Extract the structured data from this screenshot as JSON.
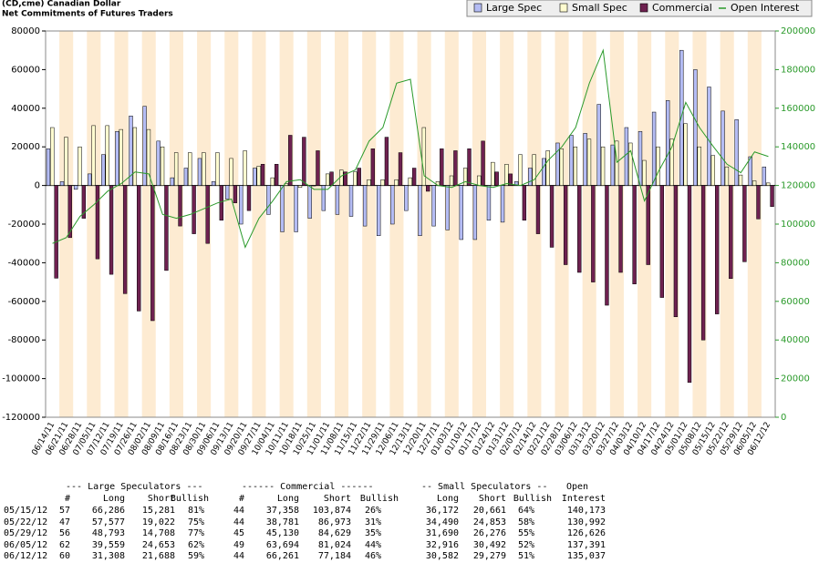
{
  "chart_data": {
    "type": "bar",
    "title": "(CD,cme) Canadian Dollar",
    "subtitle": "Net Commitments of Futures Traders",
    "categories": [
      "06/14/11",
      "06/21/11",
      "06/28/11",
      "07/05/11",
      "07/12/11",
      "07/19/11",
      "07/26/11",
      "08/02/11",
      "08/09/11",
      "08/16/11",
      "08/23/11",
      "08/30/11",
      "09/06/11",
      "09/13/11",
      "09/20/11",
      "09/27/11",
      "10/04/11",
      "10/11/11",
      "10/18/11",
      "10/25/11",
      "11/01/11",
      "11/08/11",
      "11/15/11",
      "11/22/11",
      "11/29/11",
      "12/06/11",
      "12/13/11",
      "12/20/11",
      "12/27/11",
      "01/03/12",
      "01/10/12",
      "01/17/12",
      "01/24/12",
      "01/31/12",
      "02/07/12",
      "02/14/12",
      "02/21/12",
      "02/28/12",
      "03/06/12",
      "03/13/12",
      "03/20/12",
      "03/27/12",
      "04/03/12",
      "04/10/12",
      "04/17/12",
      "04/24/12",
      "05/01/12",
      "05/08/12",
      "05/15/12",
      "05/22/12",
      "05/29/12",
      "06/05/12",
      "06/12/12"
    ],
    "series": [
      {
        "name": "Large Spec",
        "color": "#b4bcf4",
        "values": [
          19000,
          2000,
          -2000,
          6000,
          16000,
          28000,
          36000,
          41000,
          23000,
          4000,
          9000,
          14000,
          2000,
          -7000,
          -20000,
          9000,
          -15000,
          -24000,
          -24000,
          -17000,
          -13000,
          -15000,
          -16000,
          -21000,
          -26000,
          -20000,
          -13000,
          -26000,
          -21000,
          -23000,
          -28000,
          -28000,
          -18000,
          -19000,
          2000,
          9000,
          14000,
          22000,
          26000,
          27000,
          42000,
          21000,
          30000,
          28000,
          38000,
          44000,
          70000,
          60000,
          51005,
          38555,
          34085,
          14906,
          9620
        ]
      },
      {
        "name": "Small Spec",
        "color": "#fffcd0",
        "values": [
          30000,
          25000,
          20000,
          31000,
          31000,
          29000,
          30000,
          29000,
          20000,
          17000,
          17000,
          17000,
          17000,
          14000,
          18000,
          10000,
          4000,
          1000,
          -1000,
          0,
          6000,
          8000,
          7000,
          3000,
          3000,
          3000,
          4000,
          30000,
          2000,
          5000,
          9000,
          5000,
          12000,
          11000,
          16000,
          16000,
          18000,
          19000,
          20000,
          24000,
          20000,
          23000,
          22000,
          13000,
          20000,
          24000,
          32000,
          20000,
          15511,
          9637,
          5414,
          2424,
          1303
        ]
      },
      {
        "name": "Commercial",
        "color": "#6e2150",
        "values": [
          -48000,
          -27000,
          -17000,
          -38000,
          -46000,
          -56000,
          -65000,
          -70000,
          -44000,
          -21000,
          -25000,
          -30000,
          -18000,
          -9000,
          -13000,
          11000,
          11000,
          26000,
          25000,
          18000,
          7000,
          7000,
          9000,
          19000,
          25000,
          17000,
          9000,
          -3000,
          19000,
          18000,
          19000,
          23000,
          7000,
          6000,
          -18000,
          -25000,
          -32000,
          -41000,
          -45000,
          -50000,
          -62000,
          -45000,
          -51000,
          -41000,
          -58000,
          -68000,
          -102000,
          -80000,
          -66516,
          -48192,
          -39499,
          -17330,
          -10923
        ]
      },
      {
        "name": "Open Interest",
        "color": "#2a9a2a",
        "type": "line",
        "axis": "y2",
        "values": [
          90000,
          93000,
          104000,
          110000,
          117000,
          121000,
          127000,
          126000,
          105000,
          103000,
          105000,
          108000,
          111000,
          113000,
          88000,
          103000,
          112000,
          122000,
          123000,
          118000,
          118000,
          125000,
          128000,
          143000,
          150000,
          173000,
          175000,
          125000,
          120000,
          119000,
          122000,
          120000,
          119000,
          121000,
          120000,
          123000,
          133000,
          140000,
          150000,
          173000,
          190000,
          132000,
          138000,
          112000,
          127000,
          140000,
          163000,
          150000,
          140173,
          130992,
          126626,
          137391,
          135037
        ]
      }
    ],
    "ylim": [
      -120000,
      80000
    ],
    "yticks": [
      -120000,
      -100000,
      -80000,
      -60000,
      -40000,
      -20000,
      0,
      20000,
      40000,
      60000,
      80000
    ],
    "y2lim": [
      0,
      200000
    ],
    "y2ticks": [
      0,
      20000,
      40000,
      60000,
      80000,
      100000,
      120000,
      140000,
      160000,
      180000,
      200000
    ],
    "y2_color": "#2a9a2a",
    "band_color": "#fdebd2",
    "legend": "top-right"
  },
  "table": {
    "groups": [
      "--- Large Speculators ---",
      "------ Commercial ------",
      "-- Small Speculators --",
      "Open"
    ],
    "columns": [
      "#",
      "Long",
      "Short",
      "Bullish",
      "#",
      "Long",
      "Short",
      "Bullish",
      "Long",
      "Short",
      "Bullish",
      "Interest"
    ],
    "rows": [
      [
        "05/15/12",
        "57",
        "66,286",
        "15,281",
        "81%",
        "44",
        "37,358",
        "103,874",
        "26%",
        "36,172",
        "20,661",
        "64%",
        "140,173"
      ],
      [
        "05/22/12",
        "47",
        "57,577",
        "19,022",
        "75%",
        "44",
        "38,781",
        "86,973",
        "31%",
        "34,490",
        "24,853",
        "58%",
        "130,992"
      ],
      [
        "05/29/12",
        "56",
        "48,793",
        "14,708",
        "77%",
        "45",
        "45,130",
        "84,629",
        "35%",
        "31,690",
        "26,276",
        "55%",
        "126,626"
      ],
      [
        "06/05/12",
        "62",
        "39,559",
        "24,653",
        "62%",
        "49",
        "63,694",
        "81,024",
        "44%",
        "32,916",
        "30,492",
        "52%",
        "137,391"
      ],
      [
        "06/12/12",
        "60",
        "31,308",
        "21,688",
        "59%",
        "44",
        "66,261",
        "77,184",
        "46%",
        "30,582",
        "29,279",
        "51%",
        "135,037"
      ]
    ]
  }
}
